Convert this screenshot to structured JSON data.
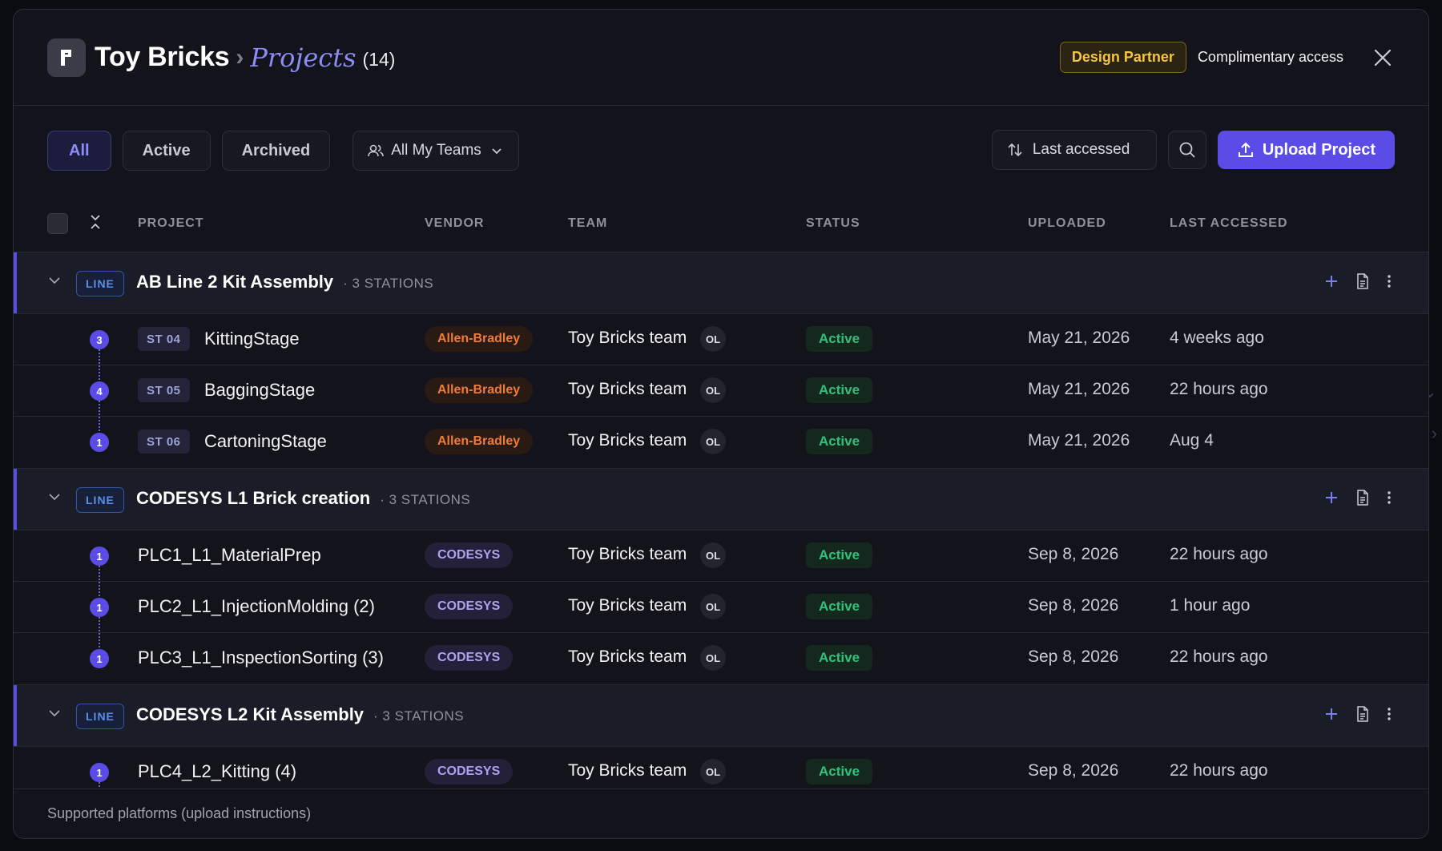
{
  "header": {
    "org_name": "Toy Bricks",
    "separator": "›",
    "section": "Projects",
    "count": "(14)",
    "partner_badge": "Design Partner",
    "access_text": "Complimentary access"
  },
  "toolbar": {
    "filters": [
      "All",
      "Active",
      "Archived"
    ],
    "team_filter": "All My Teams",
    "sort_label": "Last accessed",
    "upload_label": "Upload Project"
  },
  "table": {
    "columns": [
      "PROJECT",
      "VENDOR",
      "TEAM",
      "STATUS",
      "UPLOADED",
      "LAST ACCESSED"
    ],
    "groups": [
      {
        "badge": "LINE",
        "name": "AB Line 2 Kit Assembly",
        "count": "· 3 STATIONS",
        "rows": [
          {
            "order": "3",
            "station": "ST 04",
            "name": "KittingStage",
            "vendor": "Allen-Bradley",
            "team": "Toy Bricks team",
            "avatar": "OL",
            "status": "Active",
            "uploaded": "May 21, 2026",
            "accessed": "4 weeks ago"
          },
          {
            "order": "4",
            "station": "ST 05",
            "name": "BaggingStage",
            "vendor": "Allen-Bradley",
            "team": "Toy Bricks team",
            "avatar": "OL",
            "status": "Active",
            "uploaded": "May 21, 2026",
            "accessed": "22 hours ago"
          },
          {
            "order": "1",
            "station": "ST 06",
            "name": "CartoningStage",
            "vendor": "Allen-Bradley",
            "team": "Toy Bricks team",
            "avatar": "OL",
            "status": "Active",
            "uploaded": "May 21, 2026",
            "accessed": "Aug 4"
          }
        ]
      },
      {
        "badge": "LINE",
        "name": "CODESYS L1 Brick creation",
        "count": "· 3 STATIONS",
        "rows": [
          {
            "order": "1",
            "name": "PLC1_L1_MaterialPrep",
            "vendor": "CODESYS",
            "team": "Toy Bricks team",
            "avatar": "OL",
            "status": "Active",
            "uploaded": "Sep 8, 2026",
            "accessed": "22 hours ago"
          },
          {
            "order": "1",
            "name": "PLC2_L1_InjectionMolding (2)",
            "vendor": "CODESYS",
            "team": "Toy Bricks team",
            "avatar": "OL",
            "status": "Active",
            "uploaded": "Sep 8, 2026",
            "accessed": "1 hour ago"
          },
          {
            "order": "1",
            "name": "PLC3_L1_InspectionSorting (3)",
            "vendor": "CODESYS",
            "team": "Toy Bricks team",
            "avatar": "OL",
            "status": "Active",
            "uploaded": "Sep 8, 2026",
            "accessed": "22 hours ago"
          }
        ]
      },
      {
        "badge": "LINE",
        "name": "CODESYS L2 Kit Assembly",
        "count": "· 3 STATIONS",
        "rows": [
          {
            "order": "1",
            "name": "PLC4_L2_Kitting (4)",
            "vendor": "CODESYS",
            "team": "Toy Bricks team",
            "avatar": "OL",
            "status": "Active",
            "uploaded": "Sep 8, 2026",
            "accessed": "22 hours ago"
          }
        ]
      }
    ]
  },
  "footer": {
    "text": "Supported platforms (upload instructions)"
  },
  "colors": {
    "accent": "#5b4ce8",
    "partner": "#f5c542",
    "status_active": "#2fc27a",
    "vendor_ab": "#f07a3a",
    "vendor_codesys": "#b0a0f0"
  }
}
